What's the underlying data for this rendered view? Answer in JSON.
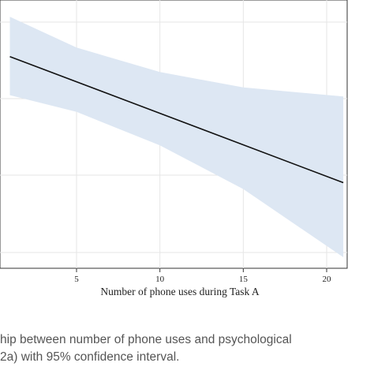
{
  "chart_data": {
    "type": "line",
    "xlabel": "Number of phone uses during Task A",
    "ylabel": "",
    "x_ticks": [
      5,
      10,
      15,
      20
    ],
    "xlim": [
      1,
      21
    ],
    "ylim": [
      0,
      1
    ],
    "grid": true,
    "series": [
      {
        "x": [
          1,
          21
        ],
        "y": [
          0.78,
          0.29
        ]
      }
    ],
    "confidence_band": {
      "x": [
        1,
        5,
        10,
        15,
        21
      ],
      "upper": [
        0.935,
        0.815,
        0.72,
        0.66,
        0.625
      ],
      "lower": [
        0.63,
        0.565,
        0.435,
        0.265,
        0.0
      ]
    }
  },
  "caption": {
    "line1": "hip between number of phone uses and psychological",
    "line2": "2a) with 95% confidence interval."
  }
}
